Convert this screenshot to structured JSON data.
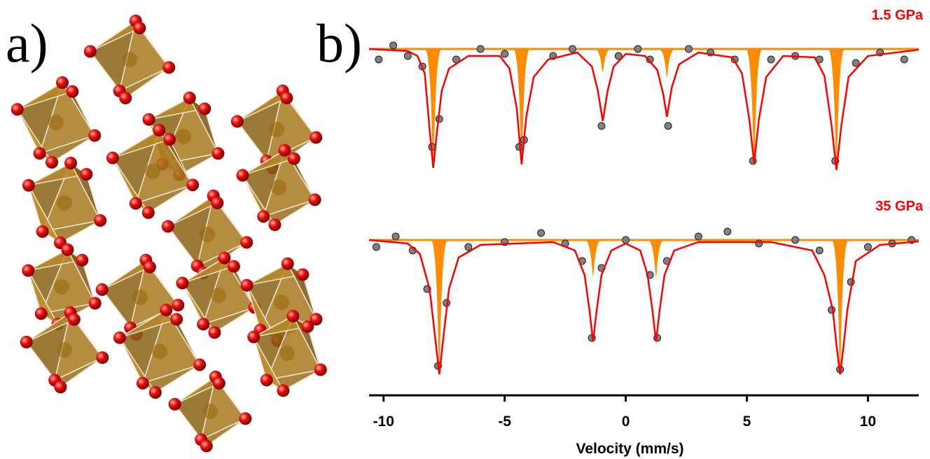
{
  "figure_labels": [
    "a)",
    "b)"
  ],
  "chart_data": [
    {
      "type": "mossbauer",
      "title": "1.5 GPa",
      "title_color": "#ff0000",
      "xlim": [
        -10.6,
        12.1
      ],
      "ylim": [
        0.81,
        1.03
      ],
      "fit": {
        "color": "#ff0000",
        "x": [
          -10.6,
          -9,
          -8.6,
          -8.3,
          -8.1,
          -7.95,
          -7.8,
          -7.6,
          -7.3,
          -6.5,
          -5.2,
          -4.8,
          -4.5,
          -4.3,
          -4.1,
          -3.8,
          -3.2,
          -2,
          -1.4,
          -1.15,
          -0.95,
          -0.75,
          -0.5,
          0,
          0.8,
          1.3,
          1.55,
          1.7,
          1.9,
          2.2,
          3,
          4.4,
          4.8,
          5.1,
          5.3,
          5.5,
          5.8,
          6.5,
          7.8,
          8.2,
          8.5,
          8.7,
          8.9,
          9.2,
          10,
          12.1
        ],
        "values": [
          1.0,
          0.997,
          0.99,
          0.965,
          0.885,
          0.83,
          0.88,
          0.94,
          0.972,
          0.99,
          0.99,
          0.972,
          0.915,
          0.835,
          0.905,
          0.96,
          0.985,
          0.995,
          0.975,
          0.94,
          0.897,
          0.94,
          0.975,
          0.993,
          0.99,
          0.97,
          0.935,
          0.903,
          0.945,
          0.978,
          0.995,
          0.988,
          0.965,
          0.9,
          0.837,
          0.9,
          0.96,
          0.99,
          0.988,
          0.962,
          0.89,
          0.827,
          0.89,
          0.96,
          0.99,
          0.999
        ]
      },
      "subspectrum": {
        "color": "#ff8c00",
        "baseline": 1.0,
        "x": [
          -7.95,
          -4.3,
          -0.95,
          1.7,
          5.3,
          8.7
        ],
        "values": [
          0.83,
          0.835,
          0.967,
          0.96,
          0.837,
          0.83
        ]
      },
      "points": {
        "color": "#808080",
        "x": [
          -10.2,
          -9.6,
          -9.0,
          -8.4,
          -8.0,
          -7.7,
          -7.0,
          -6.0,
          -5.0,
          -4.4,
          -4.2,
          -3.0,
          -2.2,
          -1.0,
          -0.3,
          0.5,
          1.0,
          1.75,
          2.6,
          3.5,
          4.5,
          5.25,
          6.0,
          7.0,
          8.0,
          8.65,
          9.5,
          10.5,
          11.5
        ],
        "values": [
          0.985,
          1.005,
          0.99,
          0.975,
          0.86,
          0.9,
          0.985,
          1.0,
          0.993,
          0.86,
          0.87,
          0.99,
          1.0,
          0.89,
          0.99,
          1.0,
          0.985,
          0.89,
          1.0,
          0.995,
          0.985,
          0.84,
          0.985,
          0.99,
          0.985,
          0.84,
          0.98,
          0.995,
          0.985
        ]
      }
    },
    {
      "type": "mossbauer",
      "title": "35 GPa",
      "title_color": "#ff0000",
      "xlim": [
        -10.6,
        12.1
      ],
      "ylim": [
        0.8,
        1.03
      ],
      "xticks": [
        -10,
        -5,
        0,
        5,
        10
      ],
      "xlabel": "Velocity (mm/s)",
      "fit": {
        "color": "#ff0000",
        "x": [
          -10.6,
          -9,
          -8.5,
          -8.1,
          -7.9,
          -7.7,
          -7.5,
          -7.3,
          -6.9,
          -6,
          -3,
          -2.1,
          -1.7,
          -1.5,
          -1.35,
          -1.2,
          -1.0,
          -0.6,
          0,
          0.6,
          0.9,
          1.1,
          1.25,
          1.4,
          1.6,
          2,
          3,
          6,
          7.7,
          8.2,
          8.55,
          8.7,
          8.85,
          9.0,
          9.15,
          9.5,
          10.5,
          12.1
        ],
        "values": [
          1.0,
          0.995,
          0.98,
          0.93,
          0.87,
          0.808,
          0.87,
          0.93,
          0.975,
          0.993,
          0.997,
          0.985,
          0.95,
          0.9,
          0.855,
          0.9,
          0.95,
          0.985,
          0.995,
          0.985,
          0.95,
          0.9,
          0.855,
          0.9,
          0.95,
          0.985,
          0.997,
          0.997,
          0.985,
          0.95,
          0.9,
          0.85,
          0.808,
          0.85,
          0.9,
          0.97,
          0.993,
          0.998
        ]
      },
      "subspectrum": {
        "color": "#ff8c00",
        "baseline": 1.0,
        "x": [
          -7.7,
          -1.35,
          1.25,
          8.85
        ],
        "values": [
          0.813,
          0.948,
          0.948,
          0.811
        ]
      },
      "points": {
        "color": "#808080",
        "x": [
          -10.3,
          -9.5,
          -8.8,
          -8.2,
          -7.75,
          -7.4,
          -6.5,
          -5,
          -3.5,
          -2.5,
          -1.8,
          -1.4,
          -1.0,
          0,
          1.0,
          1.3,
          1.7,
          3,
          4.2,
          5.5,
          7,
          8.0,
          8.5,
          8.85,
          9.3,
          10,
          11,
          11.8
        ],
        "values": [
          0.99,
          1.005,
          0.985,
          0.93,
          0.82,
          0.91,
          0.99,
          0.997,
          1.01,
          0.995,
          0.97,
          0.86,
          0.96,
          1.0,
          0.95,
          0.86,
          0.97,
          1.005,
          1.012,
          0.995,
          1.0,
          0.985,
          0.9,
          0.815,
          0.94,
          0.99,
          0.995,
          1.0
        ]
      }
    }
  ]
}
